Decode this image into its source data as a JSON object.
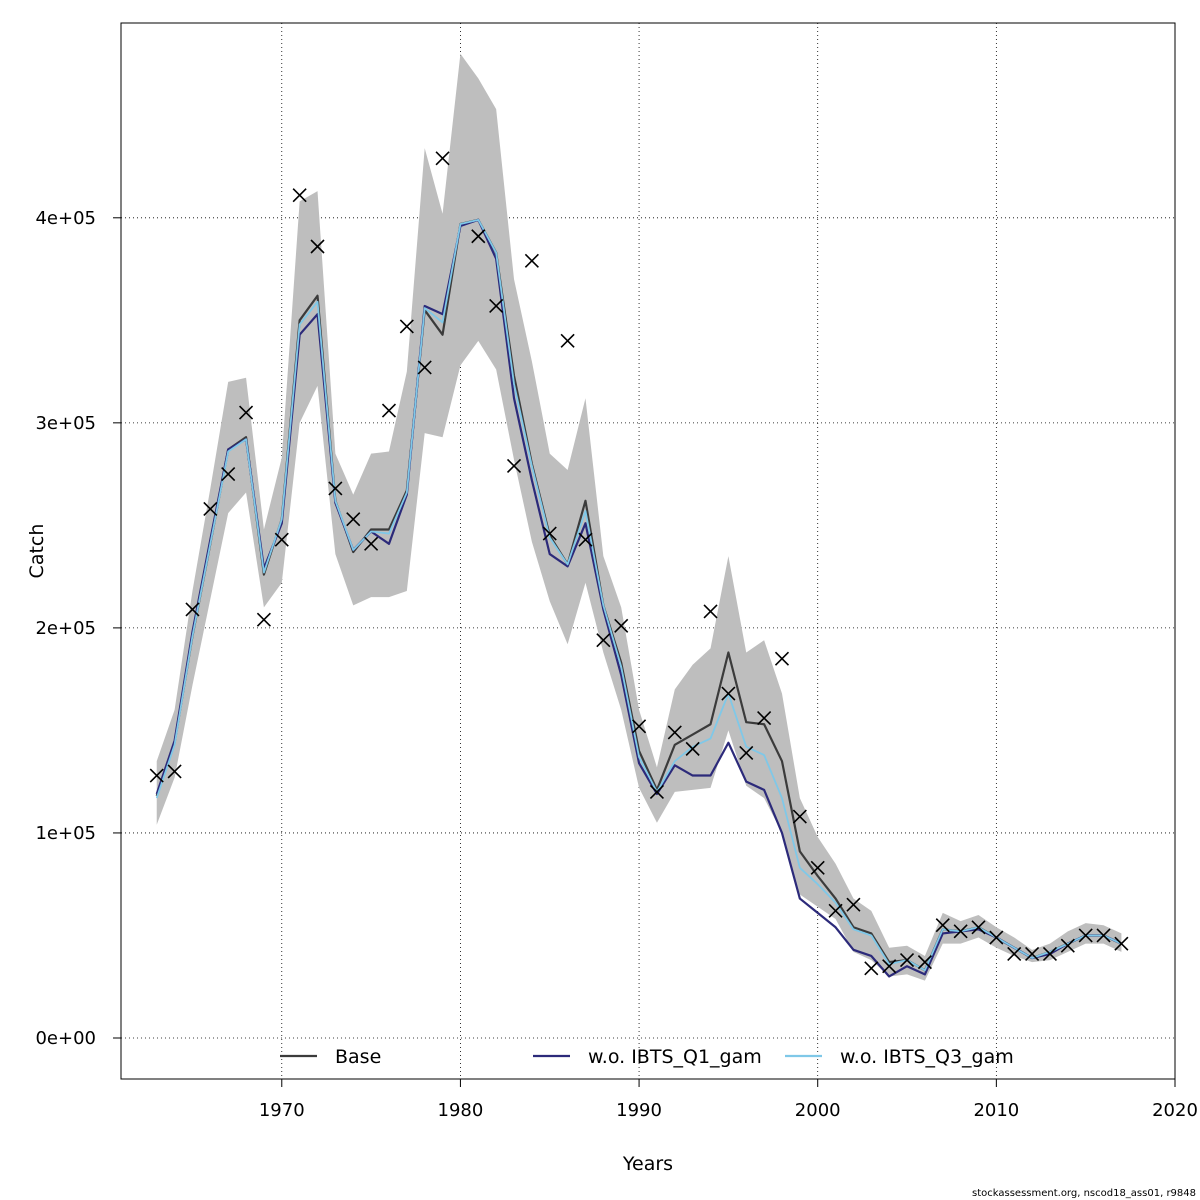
{
  "chart_data": {
    "type": "line",
    "xlabel": "Years",
    "ylabel": "Catch",
    "xlim": [
      1961,
      2020
    ],
    "ylim": [
      -20000,
      495000
    ],
    "x_ticks": [
      1970,
      1980,
      1990,
      2000,
      2010,
      2020
    ],
    "y_ticks": [
      0,
      100000,
      200000,
      300000,
      400000
    ],
    "y_tick_labels": [
      "0e+00",
      "1e+05",
      "2e+05",
      "3e+05",
      "4e+05"
    ],
    "grid": true,
    "legend_position": "bottom",
    "credit": "stockassessment.org, nscod18_ass01, r9848",
    "colors": {
      "band": "#bebebe",
      "base": "#3b3b3b",
      "q1": "#2c2a7a",
      "q3": "#7fc8e8",
      "obs": "#000000"
    },
    "years": [
      1963,
      1964,
      1965,
      1966,
      1967,
      1968,
      1969,
      1970,
      1971,
      1972,
      1973,
      1974,
      1975,
      1976,
      1977,
      1978,
      1979,
      1980,
      1981,
      1982,
      1983,
      1984,
      1985,
      1986,
      1987,
      1988,
      1989,
      1990,
      1991,
      1992,
      1993,
      1994,
      1995,
      1996,
      1997,
      1998,
      1999,
      2000,
      2001,
      2002,
      2003,
      2004,
      2005,
      2006,
      2007,
      2008,
      2009,
      2010,
      2011,
      2012,
      2013,
      2014,
      2015,
      2016,
      2017
    ],
    "band_upper": [
      135000,
      160000,
      218000,
      268000,
      320000,
      322000,
      248000,
      283000,
      408000,
      413000,
      285000,
      265000,
      285000,
      286000,
      325000,
      434000,
      402000,
      480000,
      468000,
      453000,
      370000,
      330000,
      285000,
      277000,
      312000,
      235000,
      210000,
      160000,
      132000,
      170000,
      182000,
      190000,
      235000,
      188000,
      194000,
      168000,
      117000,
      98000,
      85000,
      68000,
      62000,
      44000,
      45000,
      40000,
      61000,
      57000,
      60000,
      54000,
      49000,
      43000,
      46000,
      52000,
      56000,
      55000,
      51000
    ],
    "band_lower": [
      104000,
      127000,
      172000,
      214000,
      256000,
      266000,
      210000,
      222000,
      300000,
      318000,
      236000,
      211000,
      215000,
      215000,
      218000,
      295000,
      293000,
      328000,
      340000,
      326000,
      282000,
      242000,
      213000,
      192000,
      222000,
      188000,
      160000,
      122000,
      105000,
      120000,
      121000,
      122000,
      150000,
      123000,
      117000,
      100000,
      70000,
      64000,
      58000,
      42000,
      38000,
      30000,
      31000,
      28000,
      46000,
      46000,
      49000,
      44000,
      40000,
      37000,
      38000,
      42000,
      46000,
      46000,
      42000
    ],
    "series": [
      {
        "name": "Base",
        "values": [
          118000,
          144000,
          196000,
          241000,
          287000,
          293000,
          226000,
          253000,
          350000,
          362000,
          262000,
          237000,
          248000,
          248000,
          267000,
          355000,
          343000,
          397000,
          399000,
          383000,
          323000,
          280000,
          245000,
          231000,
          262000,
          211000,
          183000,
          140000,
          121000,
          143000,
          148000,
          153000,
          188000,
          154000,
          153000,
          135000,
          91000,
          79000,
          68000,
          54000,
          51000,
          37000,
          38000,
          33000,
          53000,
          52000,
          54000,
          49000,
          44000,
          39000,
          42000,
          46000,
          50000,
          50000,
          46000
        ]
      },
      {
        "name": "w.o. IBTS_Q1_gam",
        "values": [
          119000,
          145000,
          198000,
          243000,
          287000,
          292000,
          229000,
          251000,
          343000,
          353000,
          261000,
          238000,
          247000,
          241000,
          265000,
          357000,
          353000,
          396000,
          399000,
          380000,
          312000,
          272000,
          236000,
          230000,
          251000,
          209000,
          177000,
          134000,
          119000,
          133000,
          128000,
          128000,
          144000,
          125000,
          121000,
          100000,
          68000,
          61000,
          54000,
          43000,
          40000,
          30000,
          35000,
          31000,
          51000,
          52000,
          53000,
          49000,
          44000,
          39000,
          41000,
          46000,
          50000,
          50000,
          46000
        ]
      },
      {
        "name": "w.o. IBTS_Q3_gam",
        "values": [
          117000,
          143000,
          196000,
          241000,
          286000,
          292000,
          227000,
          253000,
          348000,
          359000,
          262000,
          238000,
          247000,
          246000,
          266000,
          356000,
          349000,
          397000,
          399000,
          383000,
          319000,
          279000,
          244000,
          231000,
          257000,
          211000,
          181000,
          137000,
          120000,
          135000,
          142000,
          146000,
          168000,
          142000,
          138000,
          117000,
          83000,
          75000,
          66000,
          53000,
          50000,
          36000,
          38000,
          33000,
          53000,
          52000,
          54000,
          49000,
          44000,
          39000,
          42000,
          46000,
          50000,
          50000,
          46000
        ]
      }
    ],
    "observations": {
      "x": [
        1963,
        1964,
        1965,
        1966,
        1967,
        1968,
        1969,
        1970,
        1971,
        1972,
        1973,
        1974,
        1975,
        1976,
        1977,
        1978,
        1979,
        1981,
        1982,
        1983,
        1984,
        1985,
        1986,
        1987,
        1988,
        1989,
        1990,
        1991,
        1992,
        1993,
        1994,
        1995,
        1996,
        1997,
        1998,
        1999,
        2000,
        2001,
        2002,
        2003,
        2004,
        2005,
        2006,
        2007,
        2008,
        2009,
        2010,
        2011,
        2012,
        2013,
        2014,
        2015,
        2016,
        2017
      ],
      "y": [
        128000,
        130000,
        209000,
        258000,
        275000,
        305000,
        204000,
        243000,
        411000,
        386000,
        268000,
        253000,
        241000,
        306000,
        347000,
        327000,
        429000,
        391000,
        357000,
        279000,
        379000,
        246000,
        340000,
        243000,
        194000,
        201000,
        152000,
        120000,
        149000,
        141000,
        208000,
        168000,
        139000,
        156000,
        185000,
        108000,
        83000,
        62000,
        65000,
        34000,
        35000,
        38000,
        37000,
        55000,
        52000,
        54000,
        49000,
        41000,
        41000,
        41000,
        45000,
        50000,
        50000,
        46000
      ]
    }
  }
}
